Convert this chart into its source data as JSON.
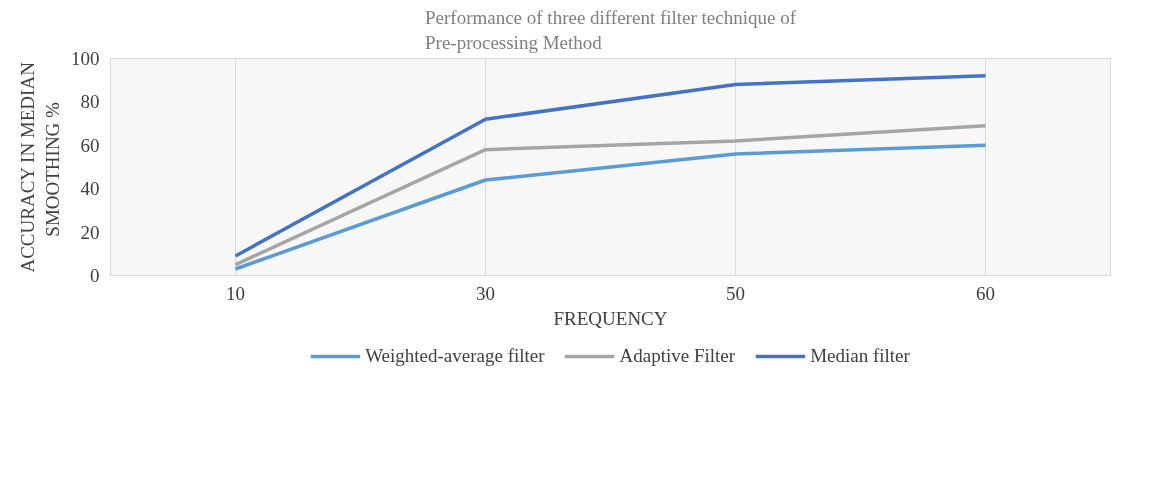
{
  "chart_data": {
    "type": "line",
    "title": "Performance of three different filter technique of\nPre-processing Method",
    "xlabel": "FREQUENCY",
    "ylabel": "ACCURACY IN MEDIAN\nSMOOTHING  %",
    "categories": [
      "10",
      "30",
      "50",
      "60"
    ],
    "series": [
      {
        "name": "Weighted-average filter",
        "color": "#5b9bd5",
        "values": [
          3,
          44,
          56,
          60
        ]
      },
      {
        "name": "Adaptive Filter",
        "color": "#a5a5a5",
        "values": [
          5,
          58,
          62,
          69
        ]
      },
      {
        "name": "Median filter",
        "color": "#4472c4",
        "values": [
          9,
          72,
          88,
          92
        ]
      }
    ],
    "ylim": [
      0,
      100
    ],
    "yticks": [
      0,
      20,
      40,
      60,
      80,
      100
    ],
    "grid": "x",
    "legend": "bottom",
    "marker": "none",
    "line_style": "solid"
  }
}
